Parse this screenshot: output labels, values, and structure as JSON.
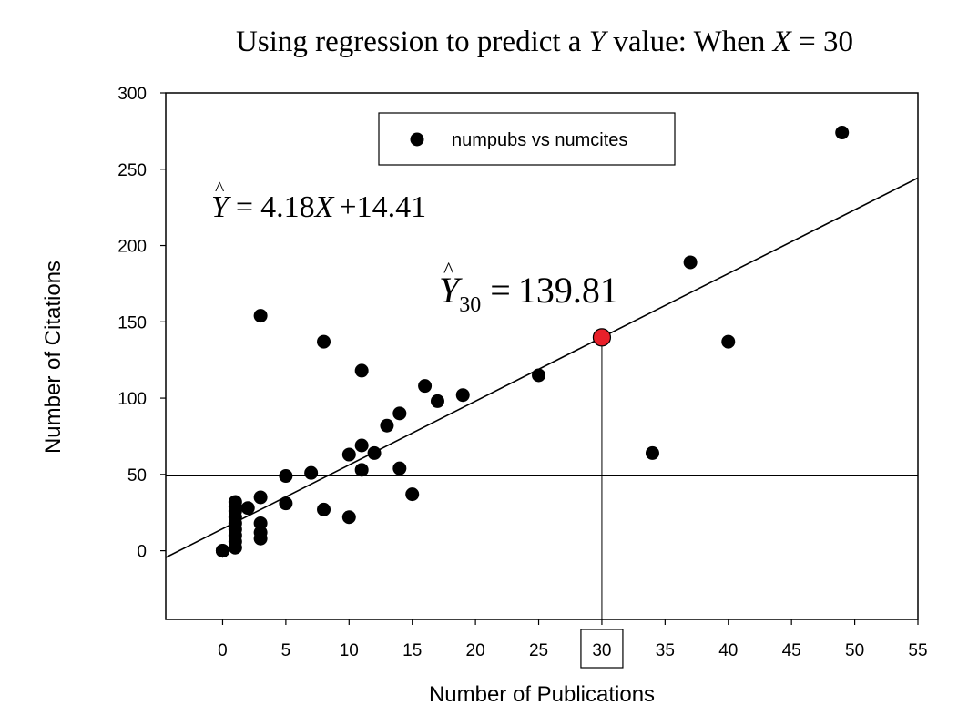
{
  "chart_data": {
    "type": "scatter",
    "title": {
      "prefix": "Using regression to predict a ",
      "var_y": "Y",
      "middle": " value: When ",
      "var_x": "X",
      "suffix": " = 30"
    },
    "xlabel": "Number of Publications",
    "ylabel": "Number of Citations",
    "xlim": [
      -4.5,
      55
    ],
    "ylim": [
      -45,
      300
    ],
    "xticks": [
      0,
      5,
      10,
      15,
      20,
      25,
      30,
      35,
      40,
      45,
      50,
      55
    ],
    "yticks": [
      0,
      50,
      100,
      150,
      200,
      250,
      300
    ],
    "legend": {
      "label": "numpubs vs numcites",
      "position": "top-center"
    },
    "series": [
      {
        "name": "numpubs vs numcites",
        "color": "#000000",
        "points": [
          [
            0,
            0
          ],
          [
            0,
            0
          ],
          [
            0,
            0
          ],
          [
            0,
            0
          ],
          [
            1,
            2
          ],
          [
            1,
            6
          ],
          [
            1,
            10
          ],
          [
            1,
            14
          ],
          [
            1,
            18
          ],
          [
            1,
            22
          ],
          [
            1,
            26
          ],
          [
            1,
            29
          ],
          [
            1,
            32
          ],
          [
            2,
            28
          ],
          [
            3,
            8
          ],
          [
            3,
            12
          ],
          [
            3,
            18
          ],
          [
            3,
            35
          ],
          [
            3,
            154
          ],
          [
            5,
            31
          ],
          [
            5,
            49
          ],
          [
            7,
            51
          ],
          [
            8,
            27
          ],
          [
            8,
            137
          ],
          [
            10,
            22
          ],
          [
            10,
            63
          ],
          [
            11,
            53
          ],
          [
            11,
            69
          ],
          [
            11,
            118
          ],
          [
            12,
            64
          ],
          [
            13,
            82
          ],
          [
            14,
            54
          ],
          [
            14,
            90
          ],
          [
            15,
            37
          ],
          [
            16,
            108
          ],
          [
            17,
            98
          ],
          [
            19,
            102
          ],
          [
            25,
            115
          ],
          [
            34,
            64
          ],
          [
            37,
            189
          ],
          [
            40,
            137
          ],
          [
            49,
            274
          ]
        ]
      }
    ],
    "regression": {
      "slope": 4.18,
      "intercept": 14.41
    },
    "equation": {
      "lhs": "Y",
      "equals": "=",
      "slope": "4.18",
      "var": "X",
      "plus": "+",
      "intercept": "14.41"
    },
    "prediction": {
      "x": 30,
      "y": 139.81,
      "lhs": "Y",
      "subscript": "30",
      "equals": "=",
      "value": "139.81",
      "color": "#e8202a",
      "reference_y": 49
    }
  }
}
